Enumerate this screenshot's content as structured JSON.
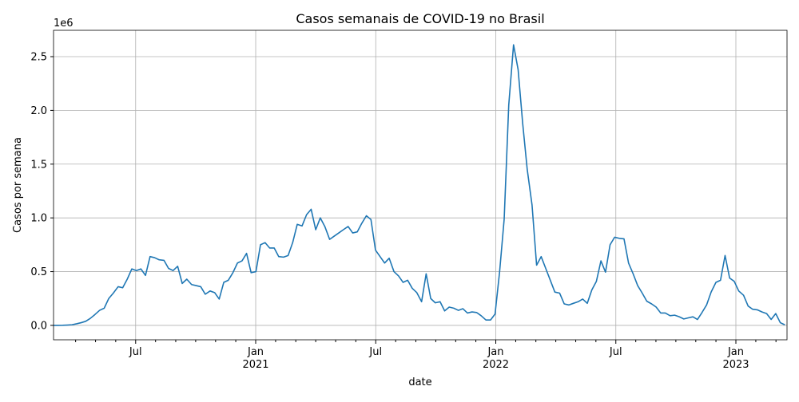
{
  "chart_data": {
    "type": "line",
    "title": "Casos semanais de COVID-19 no Brasil",
    "xlabel": "date",
    "ylabel": "Casos por semana",
    "y_offset_text": "1e6",
    "grid": true,
    "xlim": [
      2020.158,
      2023.213
    ],
    "ylim": [
      -134000,
      2745000
    ],
    "xticks": [
      {
        "value": 2020.5,
        "label": "Jul"
      },
      {
        "value": 2021.0,
        "label": "Jan\n2021"
      },
      {
        "value": 2021.5,
        "label": "Jul"
      },
      {
        "value": 2022.0,
        "label": "Jan\n2022"
      },
      {
        "value": 2022.5,
        "label": "Jul"
      },
      {
        "value": 2023.0,
        "label": "Jan\n2023"
      }
    ],
    "xminorticks": [
      2020.25,
      2020.333,
      2020.417,
      2020.583,
      2020.667,
      2020.75,
      2020.833,
      2020.917,
      2021.083,
      2021.167,
      2021.25,
      2021.333,
      2021.417,
      2021.583,
      2021.667,
      2021.75,
      2021.833,
      2021.917,
      2022.083,
      2022.167,
      2022.25,
      2022.333,
      2022.417,
      2022.583,
      2022.667,
      2022.75,
      2022.833,
      2022.917,
      2023.083,
      2023.167
    ],
    "yticks": [
      {
        "value": 0,
        "label": "0.0"
      },
      {
        "value": 500000,
        "label": "0.5"
      },
      {
        "value": 1000000,
        "label": "1.0"
      },
      {
        "value": 1500000,
        "label": "1.5"
      },
      {
        "value": 2000000,
        "label": "2.0"
      },
      {
        "value": 2500000,
        "label": "2.5"
      }
    ],
    "series": [
      {
        "name": "casos",
        "color": "#1f77b4",
        "x": [
          2020.158,
          2020.177,
          2020.196,
          2020.215,
          2020.235,
          2020.254,
          2020.273,
          2020.292,
          2020.311,
          2020.33,
          2020.35,
          2020.369,
          2020.388,
          2020.407,
          2020.427,
          2020.446,
          2020.465,
          2020.484,
          2020.503,
          2020.522,
          2020.541,
          2020.56,
          2020.579,
          2020.598,
          2020.618,
          2020.637,
          2020.656,
          2020.675,
          2020.694,
          2020.713,
          2020.733,
          2020.752,
          2020.771,
          2020.79,
          2020.81,
          2020.829,
          2020.848,
          2020.867,
          2020.886,
          2020.905,
          2020.924,
          2020.943,
          2020.962,
          2020.981,
          2021.001,
          2021.02,
          2021.039,
          2021.058,
          2021.077,
          2021.096,
          2021.116,
          2021.135,
          2021.154,
          2021.173,
          2021.193,
          2021.212,
          2021.231,
          2021.25,
          2021.269,
          2021.288,
          2021.308,
          2021.327,
          2021.346,
          2021.365,
          2021.385,
          2021.404,
          2021.423,
          2021.442,
          2021.461,
          2021.48,
          2021.499,
          2021.518,
          2021.537,
          2021.556,
          2021.576,
          2021.595,
          2021.614,
          2021.633,
          2021.652,
          2021.671,
          2021.691,
          2021.71,
          2021.729,
          2021.748,
          2021.768,
          2021.787,
          2021.806,
          2021.825,
          2021.844,
          2021.863,
          2021.882,
          2021.901,
          2021.92,
          2021.939,
          2021.959,
          2021.978,
          2021.997,
          2022.016,
          2022.035,
          2022.054,
          2022.074,
          2022.093,
          2022.112,
          2022.131,
          2022.151,
          2022.17,
          2022.189,
          2022.208,
          2022.227,
          2022.246,
          2022.266,
          2022.285,
          2022.304,
          2022.323,
          2022.343,
          2022.362,
          2022.381,
          2022.4,
          2022.419,
          2022.438,
          2022.457,
          2022.476,
          2022.495,
          2022.514,
          2022.534,
          2022.553,
          2022.572,
          2022.591,
          2022.61,
          2022.629,
          2022.649,
          2022.668,
          2022.687,
          2022.706,
          2022.726,
          2022.745,
          2022.764,
          2022.783,
          2022.802,
          2022.821,
          2022.84,
          2022.859,
          2022.878,
          2022.897,
          2022.917,
          2022.936,
          2022.955,
          2022.974,
          2022.993,
          2023.012,
          2023.032,
          2023.051,
          2023.07,
          2023.089,
          2023.109,
          2023.128,
          2023.147,
          2023.166,
          2023.185,
          2023.204
        ],
        "values": [
          0,
          0,
          1000,
          3000,
          6000,
          15000,
          25000,
          38000,
          65000,
          100000,
          140000,
          160000,
          250000,
          300000,
          360000,
          350000,
          430000,
          525000,
          510000,
          525000,
          465000,
          640000,
          630000,
          610000,
          605000,
          530000,
          510000,
          550000,
          390000,
          430000,
          380000,
          370000,
          360000,
          290000,
          320000,
          305000,
          245000,
          400000,
          420000,
          490000,
          580000,
          600000,
          670000,
          490000,
          500000,
          750000,
          770000,
          720000,
          720000,
          640000,
          635000,
          650000,
          770000,
          940000,
          925000,
          1030000,
          1080000,
          890000,
          1000000,
          920000,
          800000,
          830000,
          860000,
          890000,
          920000,
          860000,
          870000,
          950000,
          1020000,
          985000,
          700000,
          640000,
          580000,
          625000,
          500000,
          460000,
          400000,
          420000,
          345000,
          305000,
          220000,
          480000,
          250000,
          210000,
          220000,
          135000,
          170000,
          160000,
          140000,
          155000,
          115000,
          125000,
          120000,
          90000,
          50000,
          50000,
          105000,
          500000,
          990000,
          2050000,
          2610000,
          2380000,
          1880000,
          1450000,
          1120000,
          560000,
          640000,
          530000,
          420000,
          310000,
          300000,
          200000,
          190000,
          205000,
          220000,
          245000,
          205000,
          330000,
          410000,
          600000,
          495000,
          750000,
          820000,
          810000,
          805000,
          580000,
          480000,
          370000,
          300000,
          225000,
          200000,
          170000,
          115000,
          115000,
          90000,
          95000,
          80000,
          60000,
          70000,
          80000,
          55000,
          120000,
          190000,
          310000,
          400000,
          420000,
          650000,
          440000,
          410000,
          320000,
          280000,
          180000,
          150000,
          145000,
          125000,
          110000,
          55000,
          110000,
          25000,
          5000
        ]
      }
    ]
  }
}
